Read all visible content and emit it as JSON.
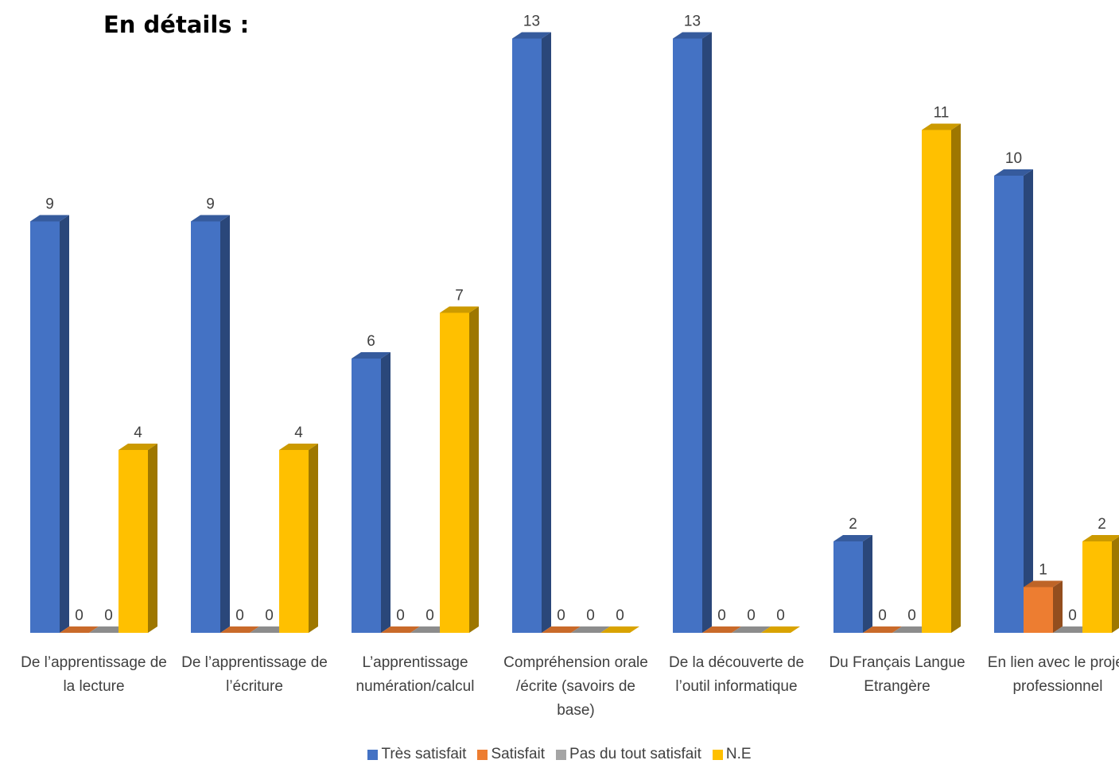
{
  "title": "En détails :",
  "chart_data": {
    "type": "bar",
    "title": "",
    "xlabel": "",
    "ylabel": "",
    "ylim": [
      0,
      13
    ],
    "grid": false,
    "legend_position": "bottom",
    "categories": [
      "De l’apprentissage de la lecture",
      "De l’apprentissage de l’écriture",
      "L’apprentissage numération/calcul",
      "Compréhension orale /écrite (savoirs de base)",
      "De la découverte de l’outil informatique",
      "Du Français Langue Etrangère",
      "En lien avec le projet professionnel"
    ],
    "series": [
      {
        "name": "Très satisfait",
        "color": "#4472C4",
        "values": [
          9,
          9,
          6,
          13,
          13,
          2,
          10
        ]
      },
      {
        "name": "Satisfait",
        "color": "#ED7D31",
        "values": [
          0,
          0,
          0,
          0,
          0,
          0,
          1
        ]
      },
      {
        "name": "Pas du tout satisfait",
        "color": "#A5A5A5",
        "values": [
          0,
          0,
          0,
          0,
          0,
          0,
          0
        ]
      },
      {
        "name": "N.E",
        "color": "#FFC000",
        "values": [
          4,
          4,
          7,
          0,
          0,
          11,
          2
        ]
      }
    ],
    "data_labels": [
      [
        "9",
        "0",
        "0",
        "4"
      ],
      [
        "9",
        "0",
        "0",
        "4"
      ],
      [
        "6",
        "0",
        "0",
        "7"
      ],
      [
        "13",
        "0",
        "0",
        "0"
      ],
      [
        "13",
        "0",
        "0",
        "0"
      ],
      [
        "2",
        "0",
        "0",
        "11"
      ],
      [
        "10",
        "1",
        "0",
        "2"
      ]
    ]
  }
}
